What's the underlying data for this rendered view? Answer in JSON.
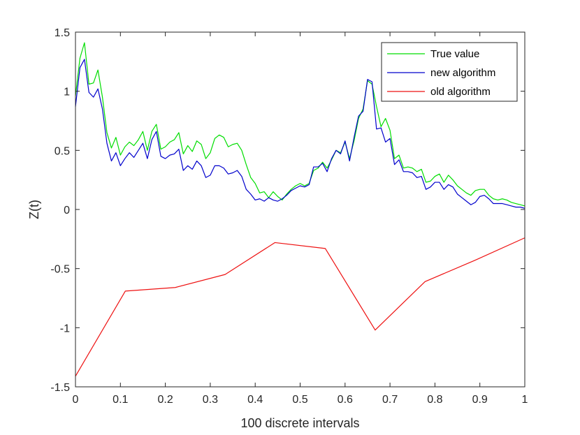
{
  "chart_data": {
    "type": "line",
    "xlabel": "100 discrete intervals",
    "ylabel": "Z(t)",
    "xlim": [
      0,
      1
    ],
    "ylim": [
      -1.5,
      1.5
    ],
    "xticks": [
      "0",
      "0.1",
      "0.2",
      "0.3",
      "0.4",
      "0.5",
      "0.6",
      "0.7",
      "0.8",
      "0.9",
      "1"
    ],
    "yticks": [
      "-1.5",
      "-1",
      "-0.5",
      "0",
      "0.5",
      "1",
      "1.5"
    ],
    "legend_position": "top-right",
    "grid": false,
    "series": [
      {
        "name": "True value",
        "color": "#00dd00",
        "x": [
          0,
          0.01,
          0.02,
          0.03,
          0.04,
          0.05,
          0.06,
          0.07,
          0.08,
          0.09,
          0.1,
          0.11,
          0.12,
          0.13,
          0.14,
          0.15,
          0.16,
          0.17,
          0.18,
          0.19,
          0.2,
          0.21,
          0.22,
          0.23,
          0.24,
          0.25,
          0.26,
          0.27,
          0.28,
          0.29,
          0.3,
          0.31,
          0.32,
          0.33,
          0.34,
          0.35,
          0.36,
          0.37,
          0.38,
          0.39,
          0.4,
          0.41,
          0.42,
          0.43,
          0.44,
          0.45,
          0.46,
          0.47,
          0.48,
          0.49,
          0.5,
          0.51,
          0.52,
          0.53,
          0.54,
          0.55,
          0.56,
          0.57,
          0.58,
          0.59,
          0.6,
          0.61,
          0.62,
          0.63,
          0.64,
          0.65,
          0.66,
          0.67,
          0.68,
          0.69,
          0.7,
          0.71,
          0.72,
          0.73,
          0.74,
          0.75,
          0.76,
          0.77,
          0.78,
          0.79,
          0.8,
          0.81,
          0.82,
          0.83,
          0.84,
          0.85,
          0.86,
          0.87,
          0.88,
          0.89,
          0.9,
          0.91,
          0.92,
          0.93,
          0.94,
          0.95,
          0.96,
          0.97,
          0.98,
          0.99,
          1.0
        ],
        "y": [
          0.96,
          1.28,
          1.41,
          1.06,
          1.07,
          1.18,
          0.95,
          0.65,
          0.52,
          0.61,
          0.46,
          0.53,
          0.57,
          0.54,
          0.59,
          0.66,
          0.5,
          0.66,
          0.72,
          0.51,
          0.53,
          0.57,
          0.59,
          0.65,
          0.47,
          0.54,
          0.49,
          0.58,
          0.55,
          0.43,
          0.48,
          0.6,
          0.63,
          0.61,
          0.53,
          0.55,
          0.56,
          0.5,
          0.38,
          0.27,
          0.22,
          0.14,
          0.15,
          0.1,
          0.15,
          0.11,
          0.08,
          0.13,
          0.17,
          0.2,
          0.22,
          0.2,
          0.22,
          0.33,
          0.35,
          0.4,
          0.35,
          0.42,
          0.5,
          0.48,
          0.57,
          0.43,
          0.58,
          0.77,
          0.85,
          1.09,
          1.06,
          0.87,
          0.7,
          0.77,
          0.67,
          0.43,
          0.46,
          0.35,
          0.36,
          0.35,
          0.32,
          0.34,
          0.23,
          0.24,
          0.28,
          0.3,
          0.23,
          0.29,
          0.25,
          0.2,
          0.17,
          0.14,
          0.12,
          0.16,
          0.17,
          0.17,
          0.12,
          0.09,
          0.08,
          0.09,
          0.08,
          0.06,
          0.05,
          0.04,
          0.03
        ]
      },
      {
        "name": "new algorithm",
        "color": "#0000cc",
        "x": [
          0,
          0.01,
          0.02,
          0.03,
          0.04,
          0.05,
          0.06,
          0.07,
          0.08,
          0.09,
          0.1,
          0.11,
          0.12,
          0.13,
          0.14,
          0.15,
          0.16,
          0.17,
          0.18,
          0.19,
          0.2,
          0.21,
          0.22,
          0.23,
          0.24,
          0.25,
          0.26,
          0.27,
          0.28,
          0.29,
          0.3,
          0.31,
          0.32,
          0.33,
          0.34,
          0.35,
          0.36,
          0.37,
          0.38,
          0.39,
          0.4,
          0.41,
          0.42,
          0.43,
          0.44,
          0.45,
          0.46,
          0.47,
          0.48,
          0.49,
          0.5,
          0.51,
          0.52,
          0.53,
          0.54,
          0.55,
          0.56,
          0.57,
          0.58,
          0.59,
          0.6,
          0.61,
          0.62,
          0.63,
          0.64,
          0.65,
          0.66,
          0.67,
          0.68,
          0.69,
          0.7,
          0.71,
          0.72,
          0.73,
          0.74,
          0.75,
          0.76,
          0.77,
          0.78,
          0.79,
          0.8,
          0.81,
          0.82,
          0.83,
          0.84,
          0.85,
          0.86,
          0.87,
          0.88,
          0.89,
          0.9,
          0.91,
          0.92,
          0.93,
          0.94,
          0.95,
          0.96,
          0.97,
          0.98,
          0.99,
          1.0
        ],
        "y": [
          0.87,
          1.2,
          1.27,
          0.99,
          0.95,
          1.02,
          0.85,
          0.56,
          0.41,
          0.48,
          0.37,
          0.43,
          0.48,
          0.44,
          0.5,
          0.56,
          0.43,
          0.59,
          0.66,
          0.45,
          0.43,
          0.46,
          0.47,
          0.51,
          0.33,
          0.37,
          0.34,
          0.41,
          0.37,
          0.27,
          0.29,
          0.37,
          0.37,
          0.35,
          0.3,
          0.31,
          0.33,
          0.28,
          0.17,
          0.13,
          0.08,
          0.09,
          0.07,
          0.1,
          0.08,
          0.07,
          0.09,
          0.12,
          0.16,
          0.18,
          0.2,
          0.19,
          0.21,
          0.36,
          0.36,
          0.39,
          0.32,
          0.43,
          0.5,
          0.47,
          0.58,
          0.41,
          0.61,
          0.79,
          0.83,
          1.1,
          1.08,
          0.68,
          0.69,
          0.57,
          0.6,
          0.38,
          0.42,
          0.32,
          0.32,
          0.31,
          0.27,
          0.28,
          0.17,
          0.19,
          0.23,
          0.23,
          0.17,
          0.21,
          0.19,
          0.13,
          0.1,
          0.07,
          0.04,
          0.06,
          0.11,
          0.12,
          0.09,
          0.05,
          0.05,
          0.05,
          0.04,
          0.03,
          0.02,
          0.02,
          0.01
        ]
      },
      {
        "name": "old algorithm",
        "color": "#ee1111",
        "x": [
          0,
          0.111,
          0.222,
          0.333,
          0.444,
          0.556,
          0.667,
          0.778,
          0.889,
          1.0
        ],
        "y": [
          -1.41,
          -0.69,
          -0.66,
          -0.55,
          -0.28,
          -0.33,
          -1.02,
          -0.61,
          -0.43,
          -0.24
        ]
      }
    ]
  }
}
